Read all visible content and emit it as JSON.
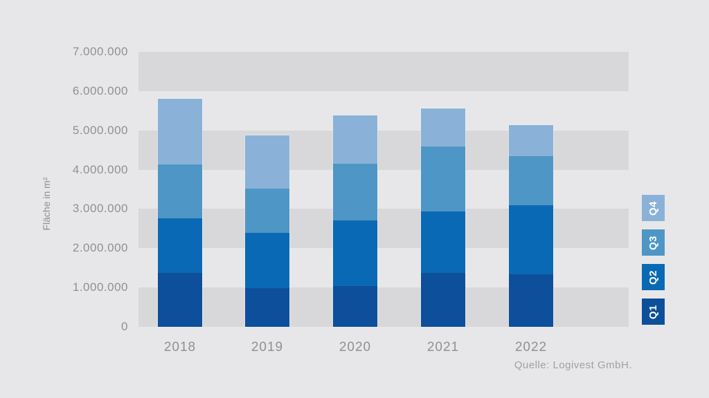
{
  "page": {
    "background": "#e7e7e9",
    "band_color": "#d8d8da"
  },
  "chart_data": {
    "type": "bar",
    "stacked": true,
    "title": "",
    "xlabel": "",
    "ylabel": "Fläche in m²",
    "categories": [
      "2018",
      "2019",
      "2020",
      "2021",
      "2022"
    ],
    "series": [
      {
        "name": "Q1",
        "color": "#0d4f9a",
        "values": [
          1370000,
          980000,
          1040000,
          1370000,
          1340000
        ]
      },
      {
        "name": "Q2",
        "color": "#0a69b4",
        "values": [
          1390000,
          1410000,
          1670000,
          1570000,
          1760000
        ]
      },
      {
        "name": "Q3",
        "color": "#4e96c6",
        "values": [
          1370000,
          1130000,
          1440000,
          1650000,
          1240000
        ]
      },
      {
        "name": "Q4",
        "color": "#8ab2d8",
        "values": [
          1670000,
          1350000,
          1230000,
          970000,
          800000
        ]
      }
    ],
    "totals": [
      5800000,
      4870000,
      5380000,
      5560000,
      5140000
    ],
    "ylim": [
      0,
      7000000
    ],
    "ytick_values": [
      7000000,
      6000000,
      5000000,
      4000000,
      3000000,
      2000000,
      1000000,
      0
    ],
    "ytick_labels": [
      "7.000.000",
      "6.000.000",
      "5.000.000",
      "4.000.000",
      "3.000.000",
      "2.000.000",
      "1.000.000",
      "0"
    ],
    "grid": "alternating horizontal gray bands (0-1M, 2-3M, 4-5M, 6-7M)",
    "legend_position": "right",
    "legend_order": [
      "Q4",
      "Q3",
      "Q2",
      "Q1"
    ]
  },
  "source": {
    "label": "Quelle: Logivest GmbH."
  },
  "colors": {
    "axis_text": "#909092",
    "source_text": "#9fa0a2",
    "legend_text": "#ffffff"
  }
}
